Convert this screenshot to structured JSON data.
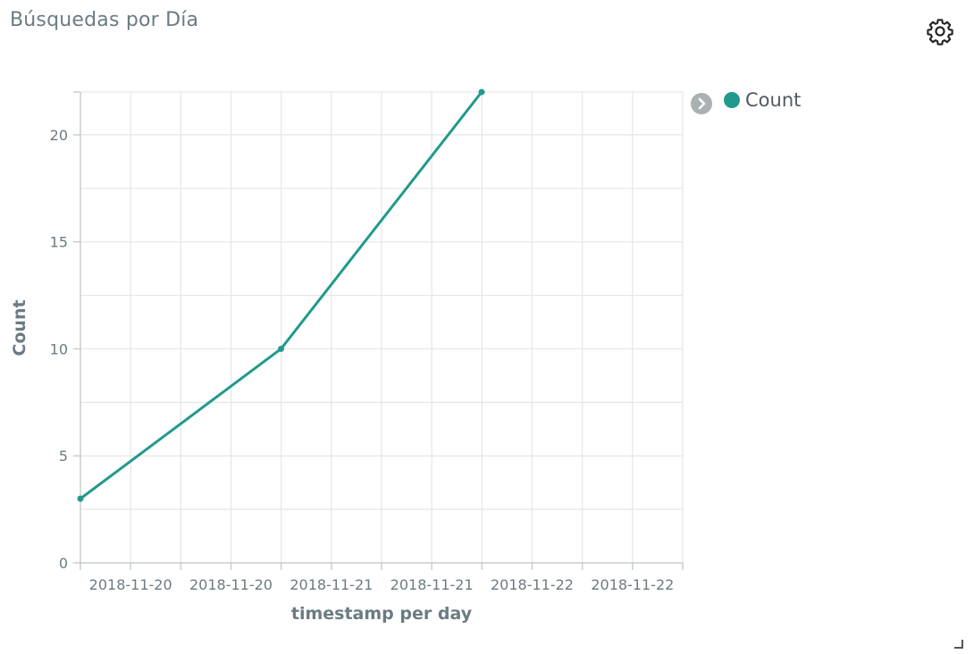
{
  "panel": {
    "title": "Búsquedas por Día"
  },
  "icons": {
    "settings": "gear-icon",
    "legend_toggle": "chevron-right-icon",
    "resize": "resize-handle-icon"
  },
  "colors": {
    "series": "#209a8d",
    "grid": "#e6e6e6",
    "axis": "#c8cdd0",
    "text": "#6b7b83"
  },
  "legend": {
    "items": [
      {
        "label": "Count",
        "color": "#209a8d"
      }
    ]
  },
  "chart_data": {
    "type": "line",
    "title": "",
    "xlabel": "timestamp per day",
    "ylabel": "Count",
    "x_tick_labels": [
      "2018-11-20",
      "2018-11-20",
      "2018-11-21",
      "2018-11-21",
      "2018-11-22",
      "2018-11-22"
    ],
    "x": [
      "2018-11-19",
      "2018-11-20",
      "2018-11-21"
    ],
    "y_ticks": [
      0,
      5,
      10,
      15,
      20
    ],
    "ylim": [
      0,
      22
    ],
    "grid": true,
    "legend_position": "right",
    "series": [
      {
        "name": "Count",
        "values": [
          3,
          10,
          22
        ]
      }
    ]
  }
}
